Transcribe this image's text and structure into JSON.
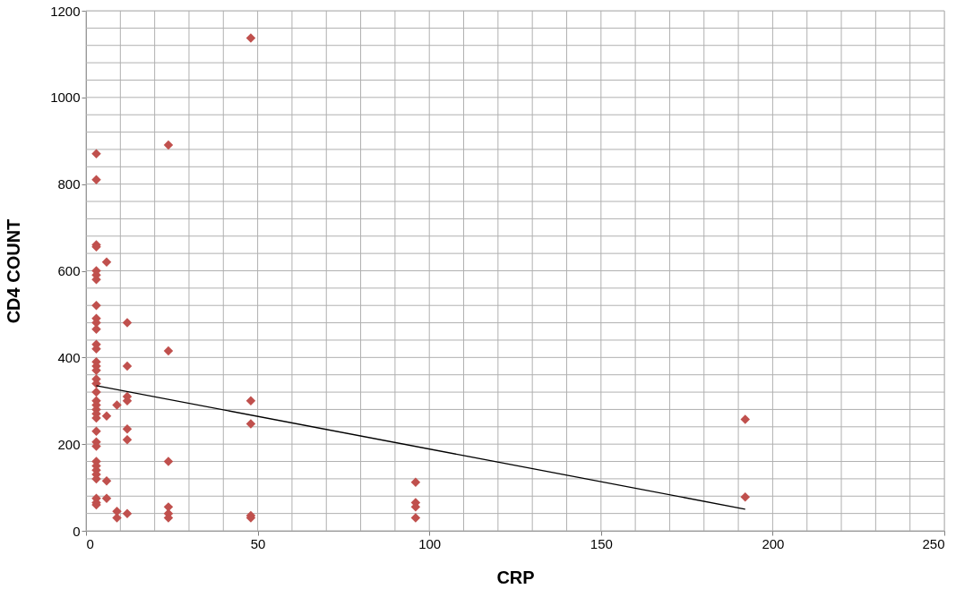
{
  "chart_data": {
    "type": "scatter",
    "xlabel": "CRP",
    "ylabel": "CD4 COUNT",
    "xlim": [
      0,
      250
    ],
    "ylim": [
      0,
      1200
    ],
    "xticks": [
      0,
      {
        "value": 10,
        "label": null
      },
      {
        "value": 20,
        "label": null
      },
      {
        "value": 30,
        "label": null
      },
      {
        "value": 40,
        "label": null
      },
      50,
      {
        "value": 60,
        "label": null
      },
      {
        "value": 70,
        "label": null
      },
      {
        "value": 80,
        "label": null
      },
      {
        "value": 90,
        "label": null
      },
      100,
      {
        "value": 110,
        "label": null
      },
      {
        "value": 120,
        "label": null
      },
      {
        "value": 130,
        "label": null
      },
      {
        "value": 140,
        "label": null
      },
      150,
      {
        "value": 160,
        "label": null
      },
      {
        "value": 170,
        "label": null
      },
      {
        "value": 180,
        "label": null
      },
      {
        "value": 190,
        "label": null
      },
      200,
      {
        "value": 210,
        "label": null
      },
      {
        "value": 220,
        "label": null
      },
      {
        "value": 230,
        "label": null
      },
      {
        "value": 240,
        "label": null
      },
      250
    ],
    "yticks": [
      0,
      {
        "value": 40,
        "label": null
      },
      {
        "value": 80,
        "label": null
      },
      {
        "value": 120,
        "label": null
      },
      {
        "value": 160,
        "label": null
      },
      200,
      {
        "value": 240,
        "label": null
      },
      {
        "value": 280,
        "label": null
      },
      {
        "value": 320,
        "label": null
      },
      {
        "value": 360,
        "label": null
      },
      400,
      {
        "value": 440,
        "label": null
      },
      {
        "value": 480,
        "label": null
      },
      {
        "value": 520,
        "label": null
      },
      {
        "value": 560,
        "label": null
      },
      600,
      {
        "value": 640,
        "label": null
      },
      {
        "value": 680,
        "label": null
      },
      {
        "value": 720,
        "label": null
      },
      {
        "value": 760,
        "label": null
      },
      800,
      {
        "value": 840,
        "label": null
      },
      {
        "value": 880,
        "label": null
      },
      {
        "value": 920,
        "label": null
      },
      {
        "value": 960,
        "label": null
      },
      1000,
      {
        "value": 1040,
        "label": null
      },
      {
        "value": 1080,
        "label": null
      },
      {
        "value": 1120,
        "label": null
      },
      {
        "value": 1160,
        "label": null
      },
      1200
    ],
    "grid": true,
    "marker": "diamond",
    "series": [
      {
        "color": "#c0504d",
        "x": [
          3,
          3,
          3,
          3,
          3,
          3,
          3,
          3,
          3,
          3,
          3,
          3,
          3,
          3,
          3,
          3,
          3,
          3,
          3,
          3,
          3,
          3,
          3,
          3,
          3,
          3,
          3,
          3,
          3,
          3,
          3,
          3,
          3,
          3,
          3,
          6,
          6,
          6,
          6,
          9,
          9,
          9,
          12,
          12,
          12,
          12,
          12,
          12,
          12,
          24,
          24,
          24,
          24,
          24,
          24,
          48,
          48,
          48,
          48,
          48,
          96,
          96,
          96,
          96,
          192,
          192
        ],
        "values": [
          870,
          810,
          660,
          655,
          600,
          590,
          580,
          520,
          490,
          480,
          465,
          430,
          420,
          390,
          380,
          370,
          350,
          340,
          320,
          300,
          290,
          280,
          270,
          260,
          230,
          205,
          195,
          160,
          150,
          140,
          130,
          120,
          75,
          65,
          60,
          620,
          265,
          115,
          75,
          290,
          45,
          30,
          480,
          380,
          310,
          300,
          235,
          210,
          40,
          890,
          415,
          160,
          55,
          40,
          30,
          1137,
          300,
          247,
          35,
          30,
          112,
          65,
          55,
          30,
          257,
          78
        ]
      },
      {
        "type": "line",
        "color": "#000000",
        "x": [
          3,
          192
        ],
        "values": [
          335,
          50
        ],
        "marker": "none"
      }
    ]
  }
}
